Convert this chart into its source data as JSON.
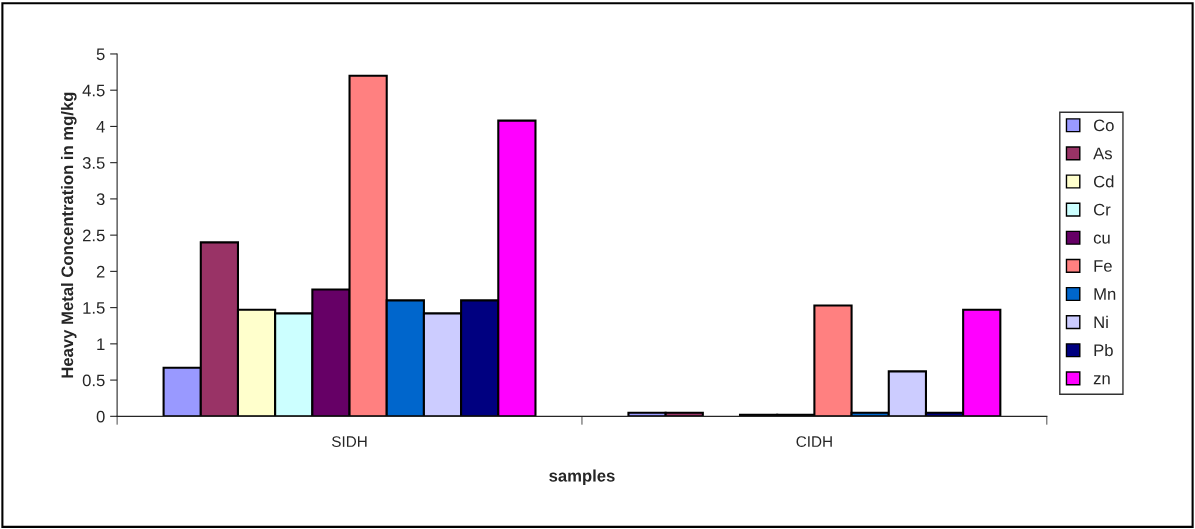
{
  "chart_data": {
    "type": "bar",
    "xlabel": "samples",
    "ylabel": "Heavy Metal Concentration in mg/kg",
    "categories": [
      "SIDH",
      "CIDH"
    ],
    "series": [
      {
        "name": "Co",
        "color": "#9999ff",
        "values": [
          0.67,
          0.05
        ]
      },
      {
        "name": "As",
        "color": "#993366",
        "values": [
          2.4,
          0.05
        ]
      },
      {
        "name": "Cd",
        "color": "#ffffcc",
        "values": [
          1.47,
          null
        ]
      },
      {
        "name": "Cr",
        "color": "#ccffff",
        "values": [
          1.42,
          0.02
        ]
      },
      {
        "name": "cu",
        "color": "#660066",
        "values": [
          1.75,
          0.02
        ]
      },
      {
        "name": "Fe",
        "color": "#ff8080",
        "values": [
          4.7,
          1.53
        ]
      },
      {
        "name": "Mn",
        "color": "#0066cc",
        "values": [
          1.6,
          0.05
        ]
      },
      {
        "name": "Ni",
        "color": "#ccccff",
        "values": [
          1.42,
          0.62
        ]
      },
      {
        "name": "Pb",
        "color": "#000080",
        "values": [
          1.6,
          0.05
        ]
      },
      {
        "name": "zn",
        "color": "#ff00ff",
        "values": [
          4.08,
          1.47
        ]
      }
    ],
    "ylim": [
      0,
      5
    ],
    "yticks": [
      0,
      0.5,
      1,
      1.5,
      2,
      2.5,
      3,
      3.5,
      4,
      4.5,
      5
    ],
    "grid": false,
    "legend": "right"
  }
}
